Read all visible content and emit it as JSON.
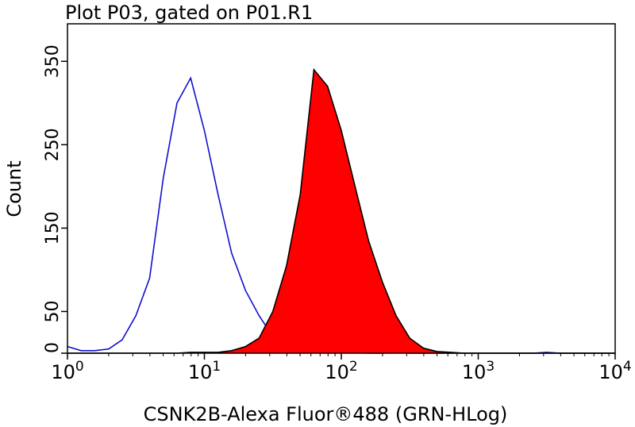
{
  "chart_data": {
    "type": "histogram-overlay",
    "title": "Plot P03, gated on P01.R1",
    "x_label": "CSNK2B-Alexa Fluor®488 (GRN-HLog)",
    "y_label": "Count",
    "xscale": "log",
    "xlim": [
      1,
      10000
    ],
    "ylim": [
      0,
      395
    ],
    "xticks": [
      {
        "value": 1,
        "label": "10",
        "exponent": "0"
      },
      {
        "value": 10,
        "label": "10",
        "exponent": "1"
      },
      {
        "value": 100,
        "label": "10",
        "exponent": "2"
      },
      {
        "value": 1000,
        "label": "10",
        "exponent": "3"
      },
      {
        "value": 10000,
        "label": "10",
        "exponent": "4"
      }
    ],
    "yticks": [
      0,
      50,
      150,
      250,
      350
    ],
    "x": [
      1,
      1.26,
      1.58,
      2,
      2.51,
      3.16,
      3.98,
      5.01,
      6.31,
      7.94,
      10,
      12.6,
      15.8,
      20,
      25.1,
      31.6,
      39.8,
      50.1,
      63.1,
      79.4,
      100,
      126,
      158,
      200,
      251,
      316,
      398,
      501,
      631,
      794,
      1000,
      1260,
      1580,
      2000,
      2510,
      3160,
      3980,
      5010,
      6310,
      7940,
      10000
    ],
    "series": [
      {
        "color": "#1010d0",
        "fill": "none",
        "values": [
          8,
          3,
          3,
          5,
          16,
          45,
          90,
          210,
          300,
          330,
          267,
          190,
          120,
          75,
          45,
          20,
          8,
          4,
          2,
          1,
          1,
          1,
          0,
          0,
          1,
          0,
          0,
          0,
          0,
          0,
          0,
          0,
          0,
          0,
          0,
          1,
          0,
          0,
          0,
          0,
          0
        ]
      },
      {
        "color": "#000000",
        "fill": "#ff0000",
        "values": [
          0,
          0,
          0,
          0,
          0,
          0,
          0,
          0,
          0,
          1,
          1,
          1,
          3,
          8,
          18,
          50,
          105,
          190,
          340,
          320,
          267,
          200,
          135,
          85,
          45,
          18,
          6,
          2,
          1,
          0,
          0,
          0,
          0,
          0,
          0,
          0,
          0,
          0,
          0,
          0,
          0
        ]
      }
    ]
  }
}
